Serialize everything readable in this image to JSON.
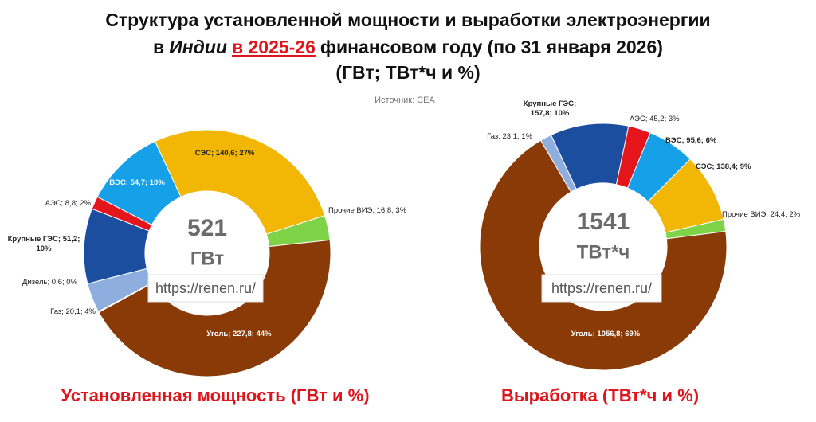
{
  "header": {
    "title_line1": "Структура установленной мощности и выработки электроэнергии",
    "title_pre": "в",
    "title_italic": "Индии",
    "title_highlight": "в 2025-26",
    "title_post": "финансовом году (по 31 января 2026)",
    "title_line3": "(ГВт; ТВт*ч и %)",
    "source": "Источник: CEA"
  },
  "chart_data": [
    {
      "type": "pie",
      "donut": true,
      "caption": "Установленная мощность (ГВт и %)",
      "center_value": 521,
      "center_unit": "ГВт",
      "watermark": "https://renen.ru/",
      "values": [
        140.6,
        16.8,
        227.8,
        0.6,
        20.1,
        51.2,
        8.8,
        54.7
      ],
      "value_labels": [
        "СЭС; 140,6; 27%",
        "Прочие ВИЭ; 16,8; 3%",
        "Уголь; 227,8; 44%",
        "Дизель; 0,6; 0%",
        "Газ; 20,1; 4%",
        "Крупные ГЭС; 51,2; 10%",
        "АЭС; 8,8; 2%",
        "ВЭС; 54,7; 10%"
      ],
      "colors": [
        "#f2b705",
        "#7ed348",
        "#8a3a06",
        "#a0a0a0",
        "#8eaee0",
        "#1c4ea0",
        "#e5161b",
        "#16a0e8"
      ]
    },
    {
      "type": "pie",
      "donut": true,
      "caption": "Выработка (ТВт*ч и %)",
      "center_value": 1541,
      "center_unit": "ТВт*ч",
      "watermark": "https://renen.ru/",
      "values": [
        157.8,
        45.2,
        95.6,
        138.4,
        24.4,
        1056.8,
        23.1
      ],
      "value_labels": [
        "Крупные ГЭС; 157,8; 10%",
        "АЭС; 45,2; 3%",
        "ВЭС; 95,6; 6%",
        "СЭС; 138,4; 9%",
        "Прочие ВИЭ; 24,4; 2%",
        "Уголь; 1056,8; 69%",
        "Газ; 23,1; 1%"
      ],
      "colors": [
        "#1c4ea0",
        "#e5161b",
        "#16a0e8",
        "#f2b705",
        "#7ed348",
        "#8a3a06",
        "#8eaee0"
      ]
    }
  ]
}
